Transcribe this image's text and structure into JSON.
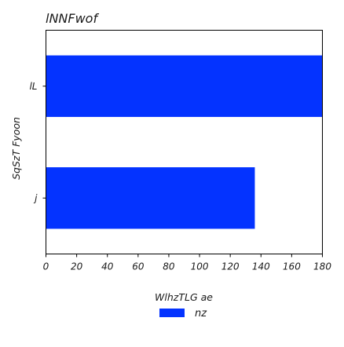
{
  "chart_data": {
    "type": "bar",
    "orientation": "horizontal",
    "title": "lNNFwof",
    "xlabel": "WlhzTLG ae",
    "ylabel": "SqSzT Fyoon",
    "categories": [
      "lL",
      "j"
    ],
    "series": [
      {
        "name": "nz",
        "values": [
          180,
          136
        ],
        "color": "#0433ff"
      }
    ],
    "xlim": [
      0,
      180
    ],
    "xticks": [
      0,
      20,
      40,
      60,
      80,
      100,
      120,
      140,
      160,
      180
    ],
    "grid": false,
    "legend_position": "bottom-center"
  }
}
